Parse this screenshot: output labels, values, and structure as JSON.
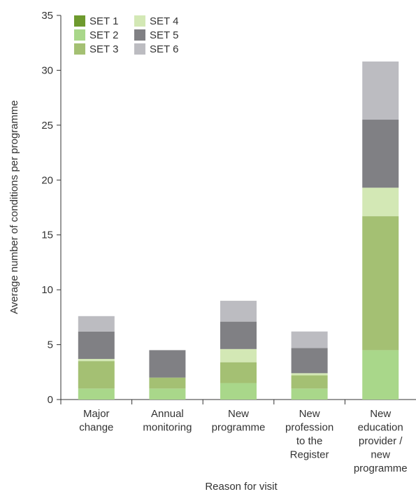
{
  "chart_data": {
    "type": "bar",
    "stacked": true,
    "title": "",
    "xlabel": "Reason for visit",
    "ylabel": "Average number of conditions per programme",
    "ylim": [
      0,
      35
    ],
    "yticks": [
      0,
      5,
      10,
      15,
      20,
      25,
      30,
      35
    ],
    "grid": false,
    "legend_position": "top-left",
    "categories": [
      [
        "Major",
        "change"
      ],
      [
        "Annual",
        "monitoring"
      ],
      [
        "New",
        "programme"
      ],
      [
        "New",
        "profession",
        "to the",
        "Register"
      ],
      [
        "New",
        "education",
        "provider /",
        "new",
        "programme"
      ]
    ],
    "series": [
      {
        "name": "SET 1",
        "color": "#6e9a2e",
        "values": [
          0,
          0,
          0,
          0,
          0
        ]
      },
      {
        "name": "SET 2",
        "color": "#a9d78a",
        "values": [
          1.0,
          1.0,
          1.5,
          1.0,
          4.5
        ]
      },
      {
        "name": "SET 3",
        "color": "#a4c073",
        "values": [
          2.5,
          1.0,
          1.9,
          1.2,
          12.2
        ]
      },
      {
        "name": "SET 4",
        "color": "#d3e8b5",
        "values": [
          0.2,
          0,
          1.2,
          0.2,
          2.6
        ]
      },
      {
        "name": "SET 5",
        "color": "#808084",
        "values": [
          2.5,
          2.5,
          2.5,
          2.3,
          6.2
        ]
      },
      {
        "name": "SET 6",
        "color": "#bcbcc1",
        "values": [
          1.4,
          0,
          1.9,
          1.5,
          5.3
        ]
      }
    ]
  }
}
